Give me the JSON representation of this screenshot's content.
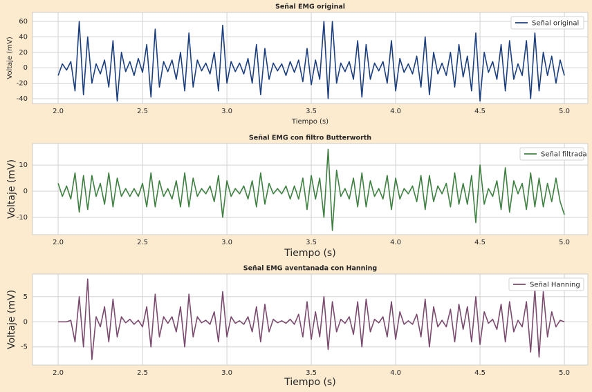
{
  "chart_data": [
    {
      "type": "line",
      "title": "Señal EMG original",
      "xlabel": "Tiempo (s)",
      "ylabel": "Voltaje (mV)",
      "grid": true,
      "legend": "upper right",
      "xlim": [
        1.848,
        5.139
      ],
      "ylim": [
        -46.3,
        71.6
      ],
      "xticks": [
        {
          "value": 2,
          "label": "2.0"
        },
        2.5,
        {
          "value": 3,
          "label": "3.0"
        },
        3.5,
        {
          "value": 4,
          "label": "4.0"
        },
        4.5,
        {
          "value": 5,
          "label": "5.0"
        }
      ],
      "yticks": [
        -40,
        -20,
        0,
        20,
        40,
        60
      ],
      "x": [
        2,
        2.025,
        2.05,
        2.075,
        2.1,
        2.125,
        2.15,
        2.175,
        2.2,
        2.225,
        2.25,
        2.275,
        2.3,
        2.325,
        2.35,
        2.375,
        2.4,
        2.425,
        2.45,
        2.475,
        2.5,
        2.525,
        2.55,
        2.575,
        2.6,
        2.625,
        2.65,
        2.675,
        2.7,
        2.725,
        2.75,
        2.775,
        2.8,
        2.825,
        2.85,
        2.875,
        2.9,
        2.925,
        2.95,
        2.975,
        3,
        3.025,
        3.05,
        3.075,
        3.1,
        3.125,
        3.15,
        3.175,
        3.2,
        3.225,
        3.25,
        3.275,
        3.3,
        3.325,
        3.35,
        3.375,
        3.4,
        3.425,
        3.45,
        3.475,
        3.5,
        3.525,
        3.55,
        3.575,
        3.6,
        3.625,
        3.65,
        3.675,
        3.7,
        3.725,
        3.75,
        3.775,
        3.8,
        3.825,
        3.85,
        3.875,
        3.9,
        3.925,
        3.95,
        3.975,
        4,
        4.025,
        4.05,
        4.075,
        4.1,
        4.125,
        4.15,
        4.175,
        4.2,
        4.225,
        4.25,
        4.275,
        4.3,
        4.325,
        4.35,
        4.375,
        4.4,
        4.425,
        4.45,
        4.475,
        4.5,
        4.525,
        4.55,
        4.575,
        4.6,
        4.625,
        4.65,
        4.675,
        4.7,
        4.725,
        4.75,
        4.775,
        4.8,
        4.825,
        4.85,
        4.875,
        4.9,
        4.925,
        4.95,
        4.975,
        5
      ],
      "series": [
        {
          "name": "Señal original",
          "color": "#1b3f7e",
          "values": [
            -10,
            5,
            -3,
            8,
            -30,
            60,
            -35,
            40,
            -20,
            5,
            -8,
            10,
            -25,
            35,
            -43,
            20,
            -5,
            8,
            -10,
            12,
            -6,
            30,
            -38,
            50,
            -25,
            8,
            -5,
            10,
            -15,
            20,
            -30,
            45,
            -25,
            10,
            -4,
            6,
            -8,
            20,
            -30,
            55,
            -20,
            8,
            -5,
            6,
            -8,
            12,
            -20,
            30,
            -35,
            25,
            -15,
            6,
            -4,
            5,
            -10,
            8,
            -6,
            10,
            -18,
            25,
            -22,
            10,
            -15,
            60,
            -40,
            60,
            -20,
            6,
            -5,
            8,
            -15,
            35,
            -38,
            30,
            -15,
            6,
            -4,
            8,
            -20,
            35,
            -30,
            12,
            -6,
            5,
            -8,
            15,
            -25,
            40,
            -35,
            20,
            -8,
            6,
            -10,
            20,
            -25,
            30,
            -12,
            15,
            -30,
            45,
            -43,
            20,
            -6,
            8,
            -15,
            30,
            -30,
            35,
            -15,
            5,
            -10,
            35,
            -40,
            45,
            -30,
            20,
            -10,
            15,
            -20,
            10,
            -10
          ]
        }
      ]
    },
    {
      "type": "line",
      "title": "Señal EMG con filtro Butterworth",
      "xlabel": "Tiempo (s)",
      "ylabel": "Voltaje (mV)",
      "grid": true,
      "legend": "upper right",
      "xlim": [
        1.848,
        5.139
      ],
      "ylim": [
        -16.6,
        18.2
      ],
      "xticks": [
        {
          "value": 2,
          "label": "2.0"
        },
        2.5,
        {
          "value": 3,
          "label": "3.0"
        },
        3.5,
        {
          "value": 4,
          "label": "4.0"
        },
        4.5,
        {
          "value": 5,
          "label": "5.0"
        }
      ],
      "yticks": [
        -10,
        0,
        10
      ],
      "x": [
        2,
        2.025,
        2.05,
        2.075,
        2.1,
        2.125,
        2.15,
        2.175,
        2.2,
        2.225,
        2.25,
        2.275,
        2.3,
        2.325,
        2.35,
        2.375,
        2.4,
        2.425,
        2.45,
        2.475,
        2.5,
        2.525,
        2.55,
        2.575,
        2.6,
        2.625,
        2.65,
        2.675,
        2.7,
        2.725,
        2.75,
        2.775,
        2.8,
        2.825,
        2.85,
        2.875,
        2.9,
        2.925,
        2.95,
        2.975,
        3,
        3.025,
        3.05,
        3.075,
        3.1,
        3.125,
        3.15,
        3.175,
        3.2,
        3.225,
        3.25,
        3.275,
        3.3,
        3.325,
        3.35,
        3.375,
        3.4,
        3.425,
        3.45,
        3.475,
        3.5,
        3.525,
        3.55,
        3.575,
        3.6,
        3.625,
        3.65,
        3.675,
        3.7,
        3.725,
        3.75,
        3.775,
        3.8,
        3.825,
        3.85,
        3.875,
        3.9,
        3.925,
        3.95,
        3.975,
        4,
        4.025,
        4.05,
        4.075,
        4.1,
        4.125,
        4.15,
        4.175,
        4.2,
        4.225,
        4.25,
        4.275,
        4.3,
        4.325,
        4.35,
        4.375,
        4.4,
        4.425,
        4.45,
        4.475,
        4.5,
        4.525,
        4.55,
        4.575,
        4.6,
        4.625,
        4.65,
        4.675,
        4.7,
        4.725,
        4.75,
        4.775,
        4.8,
        4.825,
        4.85,
        4.875,
        4.9,
        4.925,
        4.95,
        4.975,
        5
      ],
      "series": [
        {
          "name": "Señal filtrada",
          "color": "#3d8040",
          "values": [
            3,
            -2,
            2,
            -3,
            7,
            -8,
            6,
            -7,
            6,
            -2,
            3,
            -5,
            7,
            -6,
            5,
            -2,
            1,
            -2,
            1,
            -2,
            3,
            -6,
            7,
            -6,
            4,
            -2,
            1,
            -3,
            4,
            -6,
            7,
            -6,
            5,
            -2,
            1,
            -1,
            2,
            -4,
            6,
            -10,
            4,
            -2,
            1,
            -1,
            2,
            -3,
            4,
            -6,
            7,
            -5,
            3,
            -1,
            1,
            -1,
            2,
            -3,
            2,
            -3,
            5,
            -7,
            6,
            -3,
            5,
            -10,
            16,
            -15,
            8,
            -2,
            1,
            -3,
            5,
            -6,
            7,
            -6,
            4,
            -2,
            1,
            -3,
            6,
            -7,
            5,
            -3,
            1,
            -1,
            2,
            -4,
            6,
            -7,
            6,
            -4,
            2,
            -1,
            3,
            -6,
            7,
            -5,
            3,
            -5,
            6,
            -12,
            10,
            -5,
            1,
            -2,
            4,
            -7,
            9,
            -8,
            4,
            -1,
            3,
            -7,
            7,
            -6,
            5,
            -6,
            3,
            -4,
            5,
            -4,
            -9
          ]
        }
      ]
    },
    {
      "type": "line",
      "title": "Señal EMG aventanada con Hanning",
      "xlabel": "Tiempo (s)",
      "ylabel": "Voltaje (mV)",
      "grid": true,
      "legend": "upper right",
      "xlim": [
        1.848,
        5.139
      ],
      "ylim": [
        -8.6,
        9.5
      ],
      "xticks": [
        {
          "value": 2,
          "label": "2.0"
        },
        2.5,
        {
          "value": 3,
          "label": "3.0"
        },
        3.5,
        {
          "value": 4,
          "label": "4.0"
        },
        4.5,
        {
          "value": 5,
          "label": "5.0"
        }
      ],
      "yticks": [
        -5,
        0,
        5
      ],
      "x": [
        2,
        2.025,
        2.05,
        2.075,
        2.1,
        2.125,
        2.15,
        2.175,
        2.2,
        2.225,
        2.25,
        2.275,
        2.3,
        2.325,
        2.35,
        2.375,
        2.4,
        2.425,
        2.45,
        2.475,
        2.5,
        2.525,
        2.55,
        2.575,
        2.6,
        2.625,
        2.65,
        2.675,
        2.7,
        2.725,
        2.75,
        2.775,
        2.8,
        2.825,
        2.85,
        2.875,
        2.9,
        2.925,
        2.95,
        2.975,
        3,
        3.025,
        3.05,
        3.075,
        3.1,
        3.125,
        3.15,
        3.175,
        3.2,
        3.225,
        3.25,
        3.275,
        3.3,
        3.325,
        3.35,
        3.375,
        3.4,
        3.425,
        3.45,
        3.475,
        3.5,
        3.525,
        3.55,
        3.575,
        3.6,
        3.625,
        3.65,
        3.675,
        3.7,
        3.725,
        3.75,
        3.775,
        3.8,
        3.825,
        3.85,
        3.875,
        3.9,
        3.925,
        3.95,
        3.975,
        4,
        4.025,
        4.05,
        4.075,
        4.1,
        4.125,
        4.15,
        4.175,
        4.2,
        4.225,
        4.25,
        4.275,
        4.3,
        4.325,
        4.35,
        4.375,
        4.4,
        4.425,
        4.45,
        4.475,
        4.5,
        4.525,
        4.55,
        4.575,
        4.6,
        4.625,
        4.65,
        4.675,
        4.7,
        4.725,
        4.75,
        4.775,
        4.8,
        4.825,
        4.85,
        4.875,
        4.9,
        4.925,
        4.95,
        4.975,
        5
      ],
      "series": [
        {
          "name": "Señal Hanning",
          "color": "#7b4a6f",
          "values": [
            0,
            0,
            0,
            0.3,
            -4,
            5,
            -5,
            8.5,
            -7.5,
            1,
            -1,
            3,
            -4,
            4.5,
            -3,
            1,
            -0.2,
            0.5,
            -0.5,
            0.3,
            -1,
            3,
            -5,
            5.5,
            -3,
            1,
            -0.3,
            1,
            -2,
            3,
            -5,
            5.5,
            -3,
            1,
            -0.2,
            0.3,
            -0.5,
            2,
            -4,
            6,
            -3,
            1,
            -0.3,
            0.2,
            -0.5,
            1,
            -2,
            3,
            -4,
            3.5,
            -2,
            0.5,
            -0.2,
            0.2,
            -0.3,
            0.5,
            -0.5,
            1.5,
            -3,
            4,
            -3.5,
            2,
            -3,
            5,
            -5.5,
            4,
            -2,
            0.5,
            -0.3,
            1,
            -2.5,
            4,
            -5,
            4.5,
            -2,
            0.5,
            -0.2,
            1,
            -3,
            4,
            -3.5,
            2,
            -0.5,
            0.2,
            -0.5,
            1.5,
            -3,
            4.5,
            -5,
            3,
            -1,
            0.3,
            -1,
            2.5,
            -4,
            3.5,
            -1.5,
            3,
            -4,
            5,
            -4.5,
            2,
            -0.3,
            0.5,
            -1.5,
            3.5,
            -4,
            4,
            -2,
            0.3,
            -1,
            4,
            -6,
            6.5,
            -7,
            6,
            -3,
            2,
            -1,
            0.3,
            0
          ]
        }
      ]
    }
  ]
}
